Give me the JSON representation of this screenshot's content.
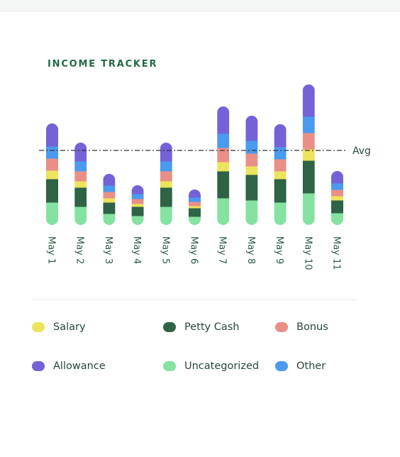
{
  "header": {
    "title": "INCOME TRACKER"
  },
  "colors": {
    "salary": "#ece45c",
    "petty_cash": "#2e6345",
    "bonus": "#ea8f87",
    "allowance": "#7562d6",
    "uncategorized": "#85e2a0",
    "other": "#4a9af0",
    "avg_line": "#333333",
    "tick_text": "#2a5a42"
  },
  "legend": [
    {
      "key": "salary",
      "label": "Salary"
    },
    {
      "key": "petty_cash",
      "label": "Petty Cash"
    },
    {
      "key": "bonus",
      "label": "Bonus"
    },
    {
      "key": "allowance",
      "label": "Allowance"
    },
    {
      "key": "uncategorized",
      "label": "Uncategorized"
    },
    {
      "key": "other",
      "label": "Other"
    }
  ],
  "chart_data": {
    "type": "bar",
    "stacked": true,
    "title": "INCOME TRACKER",
    "xlabel": "",
    "ylabel": "",
    "ylim": [
      0,
      200
    ],
    "grid": false,
    "legend_position": "bottom",
    "categories": [
      "May 1",
      "May 2",
      "May 3",
      "May 4",
      "May 5",
      "May 6",
      "May 7",
      "May 8",
      "May 9",
      "May 10",
      "May 11"
    ],
    "series": [
      {
        "name": "Uncategorized",
        "key": "uncategorized",
        "values": [
          32,
          26,
          16,
          13,
          26,
          12,
          38,
          35,
          32,
          45,
          17
        ]
      },
      {
        "name": "Petty Cash",
        "key": "petty_cash",
        "values": [
          33,
          27,
          16,
          13,
          27,
          12,
          38,
          36,
          33,
          46,
          18
        ]
      },
      {
        "name": "Salary",
        "key": "salary",
        "values": [
          12,
          9,
          6,
          4,
          9,
          3,
          13,
          12,
          11,
          16,
          6
        ]
      },
      {
        "name": "Bonus",
        "key": "bonus",
        "values": [
          17,
          14,
          9,
          7,
          14,
          6,
          20,
          18,
          17,
          23,
          9
        ]
      },
      {
        "name": "Other",
        "key": "other",
        "values": [
          17,
          14,
          9,
          7,
          14,
          6,
          20,
          18,
          17,
          23,
          9
        ]
      },
      {
        "name": "Allowance",
        "key": "allowance",
        "values": [
          32,
          26,
          16,
          12,
          26,
          11,
          38,
          35,
          32,
          45,
          17
        ]
      }
    ],
    "reference_lines": [
      {
        "label": "Avg",
        "value": 105
      }
    ]
  }
}
